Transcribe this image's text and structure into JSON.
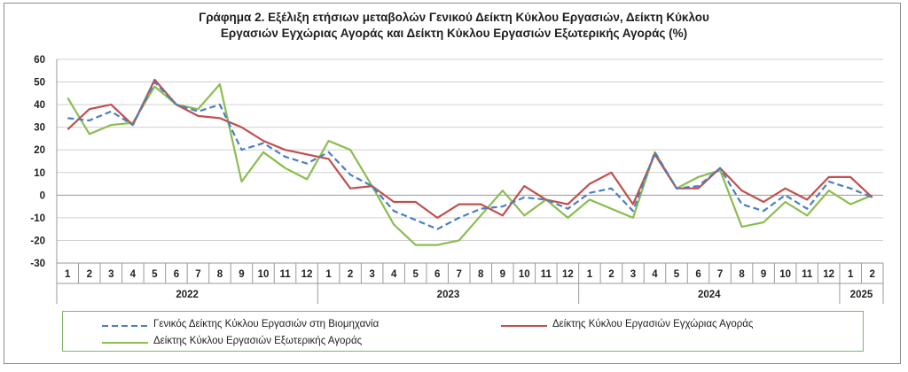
{
  "title_line1": "Γράφημα 2. Εξέλιξη ετήσιων μεταβολών Γενικού Δείκτη Κύκλου Εργασιών,  Δείκτη Κύκλου",
  "title_line2": "Εργασιών Εγχώριας Αγοράς και Δείκτη Κύκλου Εργασιών Εξωτερικής Αγοράς (%)",
  "chart_data": {
    "type": "line",
    "title": "Γράφημα 2. Εξέλιξη ετήσιων μεταβολών Γενικού Δείκτη Κύκλου Εργασιών,  Δείκτη Κύκλου Εργασιών Εγχώριας Αγοράς και Δείκτη Κύκλου Εργασιών Εξωτερικής Αγοράς (%)",
    "ylim": [
      -30,
      60
    ],
    "yticks": [
      -30,
      -20,
      -10,
      0,
      10,
      20,
      30,
      40,
      50,
      60
    ],
    "grid": true,
    "legend_position": "bottom",
    "categories": [
      "1",
      "2",
      "3",
      "4",
      "5",
      "6",
      "7",
      "8",
      "9",
      "10",
      "11",
      "12",
      "1",
      "2",
      "3",
      "4",
      "5",
      "6",
      "7",
      "8",
      "9",
      "10",
      "11",
      "12",
      "1",
      "2",
      "3",
      "4",
      "5",
      "6",
      "7",
      "8",
      "9",
      "10",
      "11",
      "12",
      "1",
      "2"
    ],
    "years": [
      {
        "label": "2022",
        "start": 0,
        "count": 12
      },
      {
        "label": "2023",
        "start": 12,
        "count": 12
      },
      {
        "label": "2024",
        "start": 24,
        "count": 12
      },
      {
        "label": "2025",
        "start": 36,
        "count": 2
      }
    ],
    "series": [
      {
        "name": "Γενικός Δείκτης Κύκλου Εργασιών στη Βιομηχανία",
        "color": "#4a7fc1",
        "dash": true,
        "values": [
          34,
          33,
          37,
          31,
          50,
          40,
          37,
          40,
          20,
          23,
          17,
          14,
          19,
          9,
          4,
          -7,
          -11,
          -15,
          -10,
          -6,
          -5,
          -1,
          -2,
          -6,
          1,
          3,
          -7,
          19,
          3,
          4,
          12,
          -4,
          -7,
          0,
          -6,
          6,
          3,
          -1
        ]
      },
      {
        "name": "Δείκτης Κύκλου Εργασιών Εγχώριας Αγοράς",
        "color": "#c0504d",
        "dash": false,
        "values": [
          29,
          38,
          40,
          31,
          51,
          40,
          35,
          34,
          30,
          24,
          20,
          18,
          16,
          3,
          4,
          -3,
          -3,
          -10,
          -4,
          -4,
          -9,
          4,
          -2,
          -4,
          5,
          10,
          -4,
          18,
          3,
          3,
          12,
          2,
          -3,
          3,
          -2,
          8,
          8,
          -1
        ]
      },
      {
        "name": "Δείκτης Κύκλου Εργασιών Εξωτερικής Αγοράς",
        "color": "#8cbd4f",
        "dash": false,
        "values": [
          43,
          27,
          31,
          32,
          48,
          40,
          38,
          49,
          6,
          19,
          12,
          7,
          24,
          20,
          4,
          -13,
          -22,
          -22,
          -20,
          -9,
          2,
          -9,
          -2,
          -10,
          -2,
          -6,
          -10,
          19,
          3,
          8,
          11,
          -14,
          -12,
          -3,
          -9,
          2,
          -4,
          0
        ]
      }
    ]
  },
  "legend": {
    "series1": "Γενικός Δείκτης Κύκλου Εργασιών στη Βιομηχανία",
    "series2": "Δείκτης Κύκλου Εργασιών Εγχώριας Αγοράς",
    "series3": "Δείκτης Κύκλου Εργασιών Εξωτερικής Αγοράς"
  }
}
